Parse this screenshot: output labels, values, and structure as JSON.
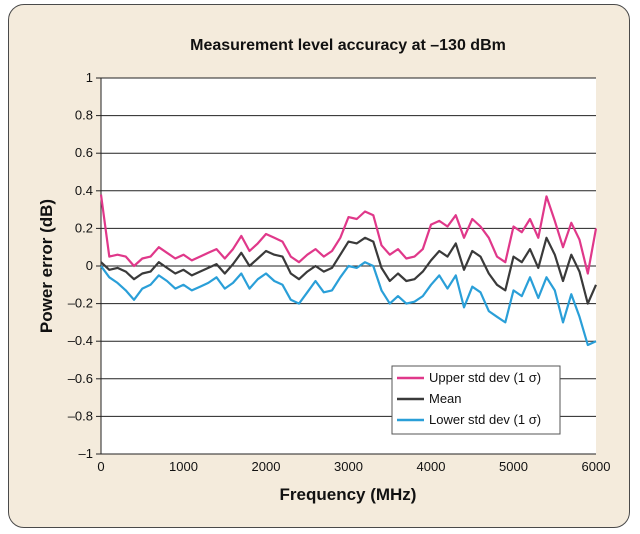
{
  "chart_data": {
    "type": "line",
    "title": "Measurement level accuracy at –130 dBm",
    "xlabel": "Frequency (MHz)",
    "ylabel": "Power error (dB)",
    "xlim": [
      0,
      6000
    ],
    "ylim": [
      -1,
      1
    ],
    "x_ticks": [
      "0",
      "1000",
      "2000",
      "3000",
      "4000",
      "5000",
      "6000"
    ],
    "y_ticks": [
      "1",
      "0.8",
      "0.6",
      "0.4",
      "0.2",
      "0",
      "–0.2",
      "–0.4",
      "–0.6",
      "–0.8",
      "–1"
    ],
    "grid": "horizontal",
    "legend_position": "bottom-right",
    "colors": {
      "background": "#f4ebdc",
      "plot": "#ffffff",
      "grid": "#222222",
      "legend_box": "#ffffff"
    },
    "x": [
      0,
      100,
      200,
      300,
      400,
      500,
      600,
      700,
      800,
      900,
      1000,
      1100,
      1200,
      1300,
      1400,
      1500,
      1600,
      1700,
      1800,
      1900,
      2000,
      2100,
      2200,
      2300,
      2400,
      2500,
      2600,
      2700,
      2800,
      2900,
      3000,
      3100,
      3200,
      3300,
      3400,
      3500,
      3600,
      3700,
      3800,
      3900,
      4000,
      4100,
      4200,
      4300,
      4400,
      4500,
      4600,
      4700,
      4800,
      4900,
      5000,
      5100,
      5200,
      5300,
      5400,
      5500,
      5600,
      5700,
      5800,
      5900,
      6000
    ],
    "series": [
      {
        "name": "Upper std dev (1 σ)",
        "color": "#e0388a",
        "values": [
          0.38,
          0.05,
          0.06,
          0.05,
          0.0,
          0.04,
          0.05,
          0.1,
          0.07,
          0.04,
          0.06,
          0.03,
          0.05,
          0.07,
          0.09,
          0.04,
          0.09,
          0.16,
          0.08,
          0.12,
          0.17,
          0.15,
          0.13,
          0.05,
          0.02,
          0.06,
          0.09,
          0.05,
          0.08,
          0.15,
          0.26,
          0.25,
          0.29,
          0.27,
          0.11,
          0.06,
          0.09,
          0.04,
          0.05,
          0.09,
          0.22,
          0.24,
          0.21,
          0.27,
          0.15,
          0.25,
          0.21,
          0.15,
          0.05,
          0.02,
          0.21,
          0.18,
          0.25,
          0.15,
          0.37,
          0.24,
          0.1,
          0.23,
          0.14,
          -0.04,
          0.2
        ]
      },
      {
        "name": "Mean",
        "color": "#3a3a3a",
        "values": [
          0.02,
          -0.02,
          -0.01,
          -0.03,
          -0.07,
          -0.04,
          -0.03,
          0.02,
          -0.01,
          -0.04,
          -0.02,
          -0.05,
          -0.03,
          -0.01,
          0.01,
          -0.04,
          0.01,
          0.07,
          0.0,
          0.04,
          0.08,
          0.06,
          0.05,
          -0.04,
          -0.07,
          -0.03,
          0.0,
          -0.03,
          -0.01,
          0.06,
          0.13,
          0.12,
          0.15,
          0.13,
          -0.01,
          -0.08,
          -0.04,
          -0.08,
          -0.07,
          -0.03,
          0.03,
          0.08,
          0.05,
          0.12,
          -0.02,
          0.08,
          0.05,
          -0.04,
          -0.1,
          -0.13,
          0.05,
          0.02,
          0.09,
          -0.01,
          0.15,
          0.06,
          -0.08,
          0.06,
          -0.03,
          -0.2,
          -0.1
        ]
      },
      {
        "name": "Lower std dev (1 σ)",
        "color": "#2a9fd8",
        "values": [
          0.0,
          -0.06,
          -0.09,
          -0.13,
          -0.18,
          -0.12,
          -0.1,
          -0.05,
          -0.08,
          -0.12,
          -0.1,
          -0.13,
          -0.11,
          -0.09,
          -0.06,
          -0.12,
          -0.09,
          -0.04,
          -0.12,
          -0.07,
          -0.04,
          -0.08,
          -0.1,
          -0.18,
          -0.2,
          -0.14,
          -0.08,
          -0.14,
          -0.13,
          -0.06,
          0.0,
          -0.01,
          0.02,
          0.0,
          -0.13,
          -0.2,
          -0.16,
          -0.2,
          -0.19,
          -0.16,
          -0.1,
          -0.05,
          -0.12,
          -0.05,
          -0.22,
          -0.11,
          -0.14,
          -0.24,
          -0.27,
          -0.3,
          -0.13,
          -0.16,
          -0.06,
          -0.17,
          -0.06,
          -0.13,
          -0.3,
          -0.15,
          -0.27,
          -0.42,
          -0.4
        ]
      }
    ]
  }
}
